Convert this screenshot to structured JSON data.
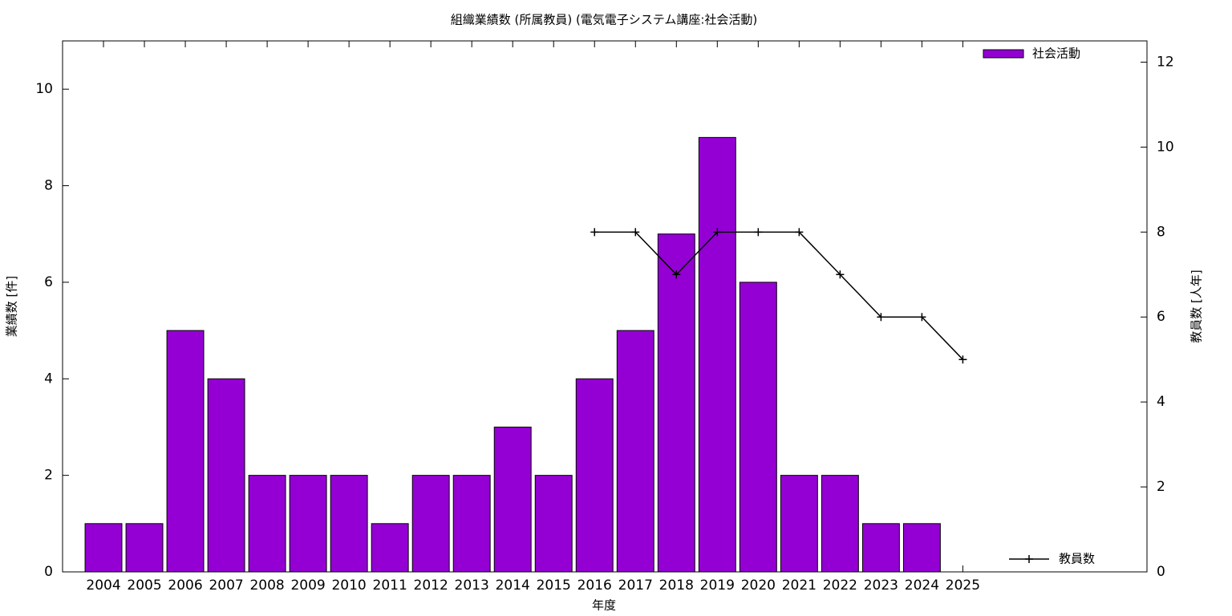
{
  "chart_data": {
    "type": "bar",
    "title": "組織業績数 (所属教員) (電気電子システム講座:社会活動)",
    "x_label": "年度",
    "y_label": "業績数 [件]",
    "y2_label": "教員数 [人年]",
    "categories": [
      "2004",
      "2005",
      "2006",
      "2007",
      "2008",
      "2009",
      "2010",
      "2011",
      "2012",
      "2013",
      "2014",
      "2015",
      "2016",
      "2017",
      "2018",
      "2019",
      "2020",
      "2021",
      "2022",
      "2023",
      "2024",
      "2025"
    ],
    "series": [
      {
        "name": "社会活動",
        "type": "bar",
        "color": "#9400d3",
        "legend": "top-right",
        "values": [
          1,
          1,
          5,
          4,
          2,
          2,
          2,
          1,
          2,
          2,
          3,
          2,
          4,
          5,
          7,
          9,
          6,
          2,
          2,
          1,
          1,
          null
        ]
      },
      {
        "name": "教員数",
        "type": "line",
        "axis": "y2",
        "color": "#000000",
        "legend": "bottom-right",
        "values": [
          null,
          null,
          null,
          null,
          null,
          null,
          null,
          null,
          null,
          null,
          null,
          null,
          8,
          8,
          7,
          8,
          8,
          8,
          7,
          6,
          6,
          5
        ]
      }
    ],
    "ylim": [
      0,
      11
    ],
    "yticks": [
      0,
      2,
      4,
      6,
      8,
      10
    ],
    "y2lim": [
      0,
      12.5
    ],
    "y2ticks": [
      0,
      2,
      4,
      6,
      8,
      10,
      12
    ]
  }
}
